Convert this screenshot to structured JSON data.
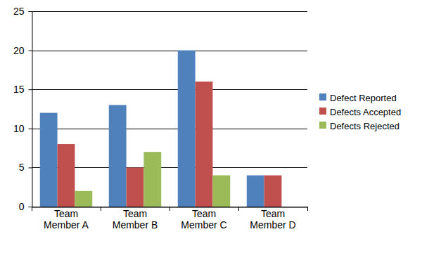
{
  "chart_data": {
    "type": "bar",
    "categories": [
      "Team Member A",
      "Team Member B",
      "Team Member C",
      "Team Member D"
    ],
    "series": [
      {
        "name": "Defect Reported",
        "color": "#4f81bd",
        "values": [
          12,
          13,
          20,
          4
        ]
      },
      {
        "name": "Defects Accepted",
        "color": "#c0504d",
        "values": [
          8,
          5,
          16,
          4
        ]
      },
      {
        "name": "Defects Rejected",
        "color": "#9bbb59",
        "values": [
          2,
          7,
          4,
          0
        ]
      }
    ],
    "ylim": [
      0,
      25
    ],
    "yticks": [
      0,
      5,
      10,
      15,
      20,
      25
    ],
    "grid": true,
    "legend": "right"
  }
}
